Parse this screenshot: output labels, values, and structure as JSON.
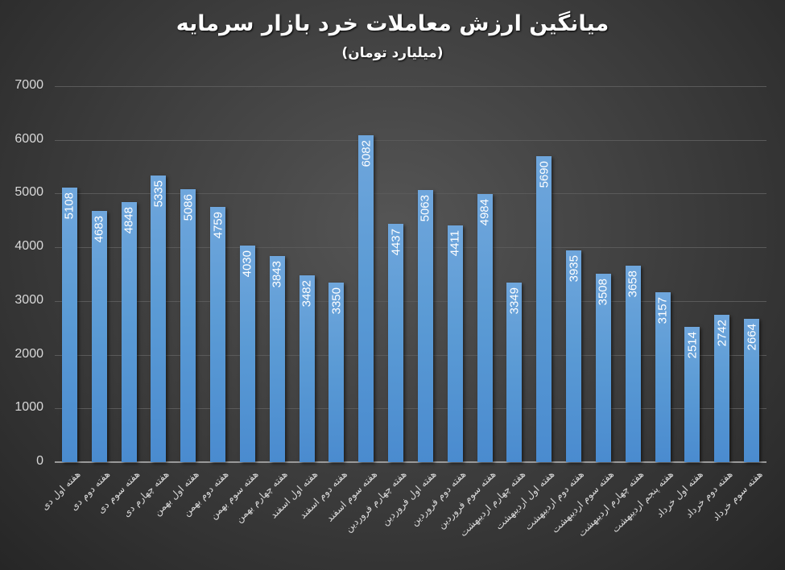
{
  "title": "میانگین ارزش معاملات خرد بازار سرمایه",
  "subtitle": "(میلیارد تومان)",
  "colors": {
    "bar": "#5b9bd5",
    "background": "#404040",
    "text": "#d9d9d9"
  },
  "chart_data": {
    "type": "bar",
    "title": "میانگین ارزش معاملات خرد بازار سرمایه",
    "subtitle": "(میلیارد تومان)",
    "xlabel": "",
    "ylabel": "",
    "ylim": [
      0,
      7000
    ],
    "yticks": [
      0,
      1000,
      2000,
      3000,
      4000,
      5000,
      6000,
      7000
    ],
    "grid": true,
    "legend": "none",
    "data_labels": "inside-end, rotated 270",
    "categories": [
      "هفته اول دی",
      "هفته دوم دی",
      "هفته سوم دی",
      "هفته چهارم دی",
      "هفته اول بهمن",
      "هفته دوم بهمن",
      "هفته سوم بهمن",
      "هفته چهارم بهمن",
      "هفته اول اسفند",
      "هفته دوم اسفند",
      "هفته سوم اسفند",
      "هفته چهارم فروردین",
      "هفته اول فروردین",
      "هفته دوم فروردین",
      "هفته سوم فروردین",
      "هفته چهارم اردیبهشت",
      "هفته اول اردیبهشت",
      "هفته دوم اردیبهشت",
      "هفته سوم اردیبهشت",
      "هفته چهارم اردیبهشت",
      "هفته پنجم اردیبهشت",
      "هفته اول خرداد",
      "هفته دوم خرداد",
      "هفته سوم خرداد"
    ],
    "values": [
      5108,
      4683,
      4848,
      5335,
      5086,
      4759,
      4030,
      3843,
      3482,
      3350,
      6082,
      4437,
      5063,
      4411,
      4984,
      3349,
      5690,
      3935,
      3508,
      3658,
      3157,
      2514,
      2742,
      2664
    ]
  }
}
